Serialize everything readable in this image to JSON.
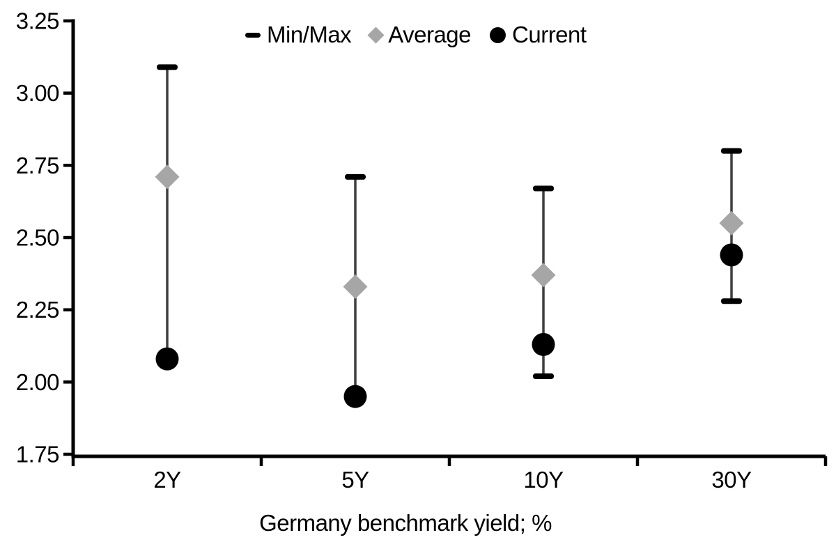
{
  "legend": {
    "items": [
      {
        "id": "minmax",
        "label": "Min/Max",
        "marker": "dash-icon",
        "color": "#000000"
      },
      {
        "id": "average",
        "label": "Average",
        "marker": "diamond-icon",
        "color": "#a6a6a6"
      },
      {
        "id": "current",
        "label": "Current",
        "marker": "circle-icon",
        "color": "#000000"
      }
    ]
  },
  "chart_data": {
    "type": "scatter",
    "subtype": "min-max-range-with-markers",
    "categories": [
      "2Y",
      "5Y",
      "10Y",
      "30Y"
    ],
    "series": [
      {
        "name": "Min/Max",
        "role": "range",
        "min": [
          2.08,
          1.95,
          2.02,
          2.28
        ],
        "max": [
          3.09,
          2.71,
          2.67,
          2.8
        ]
      },
      {
        "name": "Average",
        "role": "marker-diamond",
        "values": [
          2.71,
          2.33,
          2.37,
          2.55
        ]
      },
      {
        "name": "Current",
        "role": "marker-circle",
        "values": [
          2.08,
          1.95,
          2.13,
          2.44
        ]
      }
    ],
    "title": "",
    "xlabel": "Germany benchmark yield; %",
    "ylabel": "",
    "ylim": [
      1.75,
      3.25
    ],
    "yticks": [
      3.25,
      3.0,
      2.75,
      2.5,
      2.25,
      2.0,
      1.75
    ],
    "ytick_labels": [
      "3.25",
      "3.00",
      "2.75",
      "2.50",
      "2.25",
      "2.00",
      "1.75"
    ],
    "grid": false,
    "legend_position": "top-center"
  },
  "colors": {
    "background": "#ffffff",
    "axis": "#000000",
    "text": "#000000",
    "range_line": "#3f3f3f",
    "range_cap": "#000000",
    "average_fill": "#a6a6a6",
    "current_fill": "#000000"
  }
}
